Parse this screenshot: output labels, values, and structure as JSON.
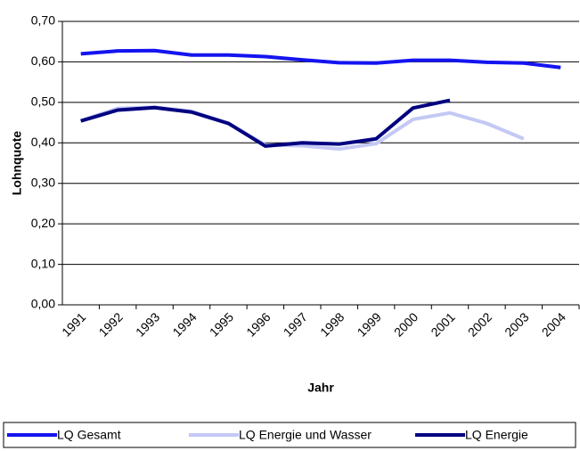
{
  "chart_data": {
    "type": "line",
    "x_label": "Jahr",
    "y_label": "Lohnquote",
    "categories": [
      "1991",
      "1992",
      "1993",
      "1994",
      "1995",
      "1996",
      "1997",
      "1998",
      "1999",
      "2000",
      "2001",
      "2002",
      "2003",
      "2004"
    ],
    "series": [
      {
        "name": "LQ Gesamt",
        "color": "#1414f0",
        "values": [
          0.62,
          0.627,
          0.628,
          0.617,
          0.617,
          0.613,
          0.605,
          0.598,
          0.597,
          0.604,
          0.604,
          0.599,
          0.597,
          0.586
        ]
      },
      {
        "name": "LQ Energie und Wasser",
        "color": "#c4c8f4",
        "values": [
          0.455,
          0.485,
          0.488,
          0.478,
          0.448,
          0.395,
          0.393,
          0.385,
          0.398,
          0.458,
          0.474,
          0.448,
          0.41,
          null
        ]
      },
      {
        "name": "LQ Energie",
        "color": "#000080",
        "values": [
          0.454,
          0.481,
          0.487,
          0.476,
          0.448,
          0.392,
          0.4,
          0.397,
          0.41,
          0.486,
          0.505,
          null,
          null,
          null
        ]
      }
    ],
    "ylim": [
      0,
      0.7
    ],
    "yticks": [
      {
        "value": 0,
        "label": "0,00"
      },
      {
        "value": 0.1,
        "label": "0,10"
      },
      {
        "value": 0.2,
        "label": "0,20"
      },
      {
        "value": 0.3,
        "label": "0,30"
      },
      {
        "value": 0.4,
        "label": "0,40"
      },
      {
        "value": 0.5,
        "label": "0,50"
      },
      {
        "value": 0.6,
        "label": "0,60"
      },
      {
        "value": 0.7,
        "label": "0,70"
      }
    ],
    "grid": true,
    "legend": "bottom"
  }
}
